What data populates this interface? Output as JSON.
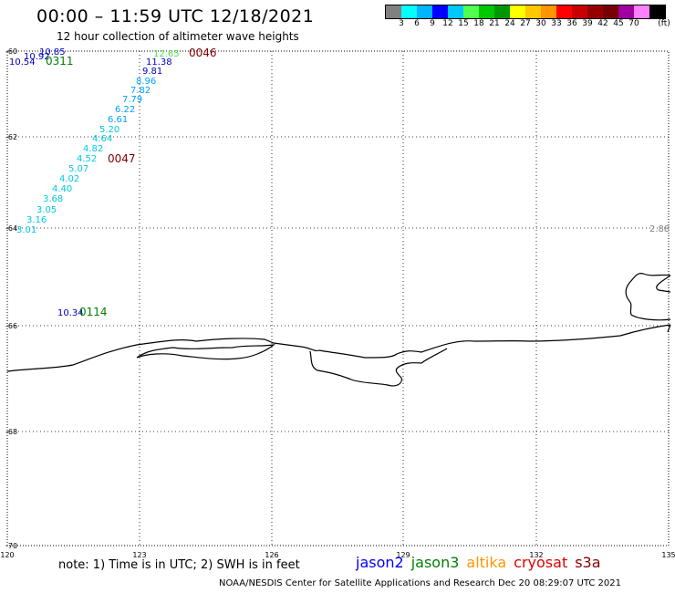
{
  "header": {
    "title": "00:00 – 11:59 UTC 12/18/2021",
    "subtitle": "12 hour collection of altimeter wave heights"
  },
  "colorbar": {
    "colors": [
      "#808080",
      "#00ffff",
      "#00b4ff",
      "#0000ff",
      "#00c8ff",
      "#50ff50",
      "#00c800",
      "#009600",
      "#ffff00",
      "#ffc800",
      "#ff9600",
      "#ff0000",
      "#c80000",
      "#960000",
      "#780000",
      "#a000a0",
      "#ff80ff",
      "#000000"
    ],
    "labels": [
      "3",
      "6",
      "9",
      "12",
      "15",
      "18",
      "21",
      "24",
      "27",
      "30",
      "33",
      "36",
      "39",
      "42",
      "45",
      "70"
    ],
    "unit": "(ft)"
  },
  "map": {
    "lat_labels": [
      "-60",
      "-62",
      "-64",
      "-66",
      "-68",
      "-70"
    ],
    "lon_labels": [
      "120",
      "123",
      "126",
      "129",
      "132",
      "135"
    ]
  },
  "track_values": [
    {
      "text": "10.85",
      "color": "#0000c0"
    },
    {
      "text": "10.92",
      "color": "#0000c0"
    },
    {
      "text": "10.54",
      "color": "#0000c0"
    },
    {
      "text": "12.65",
      "color": "#50e050"
    },
    {
      "text": "11.38",
      "color": "#0000c0"
    },
    {
      "text": "9.81",
      "color": "#0000c0"
    },
    {
      "text": "8.96",
      "color": "#00a0ff"
    },
    {
      "text": "7.82",
      "color": "#00a0ff"
    },
    {
      "text": "7.79",
      "color": "#00a0ff"
    },
    {
      "text": "6.22",
      "color": "#00a0ff"
    },
    {
      "text": "6.61",
      "color": "#00a0ff"
    },
    {
      "text": "5.20",
      "color": "#00c8e0"
    },
    {
      "text": "4.64",
      "color": "#00c8e0"
    },
    {
      "text": "4.82",
      "color": "#00c8e0"
    },
    {
      "text": "4.52",
      "color": "#00c8e0"
    },
    {
      "text": "5.07",
      "color": "#00c8e0"
    },
    {
      "text": "4.02",
      "color": "#00c8e0"
    },
    {
      "text": "4.40",
      "color": "#00c8e0"
    },
    {
      "text": "3.68",
      "color": "#00c8e0"
    },
    {
      "text": "3.05",
      "color": "#00c8e0"
    },
    {
      "text": "3.16",
      "color": "#00c8e0"
    },
    {
      "text": "3.01",
      "color": "#00c8e0"
    },
    {
      "text": "10.34",
      "color": "#0000c0"
    },
    {
      "text": "2.88",
      "color": "#808080"
    }
  ],
  "pass_labels": [
    {
      "text": "0311",
      "color": "#008000"
    },
    {
      "text": "0046",
      "color": "#800000"
    },
    {
      "text": "0047",
      "color": "#800000"
    },
    {
      "text": "0114",
      "color": "#008000"
    }
  ],
  "footer": {
    "note": "note: 1) Time is in UTC; 2) SWH is in feet",
    "satellites": [
      {
        "name": "jason2",
        "color": "#0000ff"
      },
      {
        "name": "jason3",
        "color": "#008000"
      },
      {
        "name": "altika",
        "color": "#ff9600"
      },
      {
        "name": "cryosat",
        "color": "#e00000"
      },
      {
        "name": "s3a",
        "color": "#800000"
      }
    ],
    "credit": "NOAA/NESDIS Center for Satellite Applications and Research    Dec 20 08:29:07 UTC 2021"
  }
}
